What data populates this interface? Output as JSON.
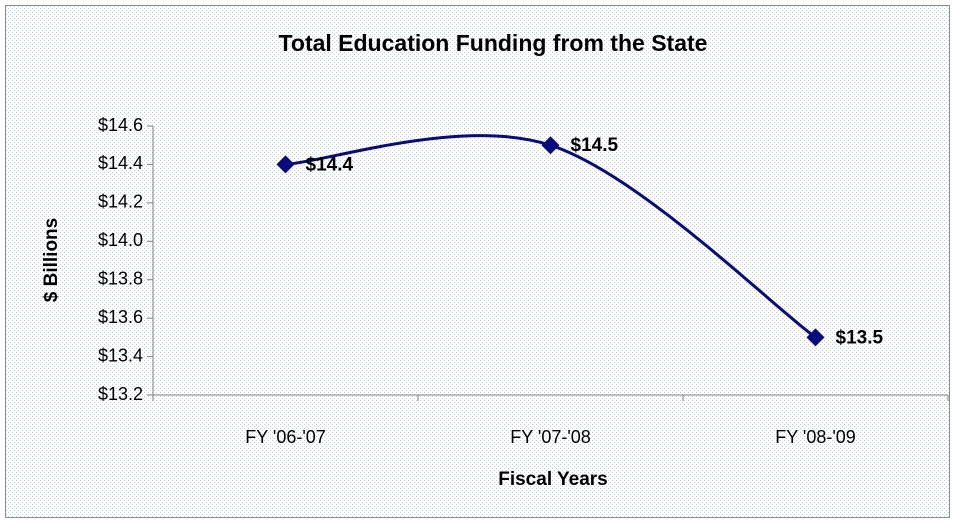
{
  "chart_data": {
    "type": "line",
    "title": "Total Education Funding from the State",
    "x_label": "Fiscal Years",
    "y_label": "$ Billions",
    "categories": [
      "FY '06-'07",
      "FY '07-'08",
      "FY '08-'09"
    ],
    "series": [
      {
        "color": "#0a0a80",
        "values": [
          14.4,
          14.5,
          13.5
        ],
        "value_labels": [
          "$14.4",
          "$14.5",
          "$13.5"
        ]
      }
    ],
    "smooth": true,
    "marker": "diamond",
    "ylim": [
      13.2,
      14.6
    ],
    "yticks": [
      {
        "value": 13.2,
        "label": "$13.2"
      },
      {
        "value": 13.4,
        "label": "$13.4"
      },
      {
        "value": 13.6,
        "label": "$13.6"
      },
      {
        "value": 13.8,
        "label": "$13.8"
      },
      {
        "value": 14.0,
        "label": "$14.0"
      },
      {
        "value": 14.2,
        "label": "$14.2"
      },
      {
        "value": 14.4,
        "label": "$14.4"
      },
      {
        "value": 14.6,
        "label": "$14.6"
      }
    ],
    "grid": false
  }
}
